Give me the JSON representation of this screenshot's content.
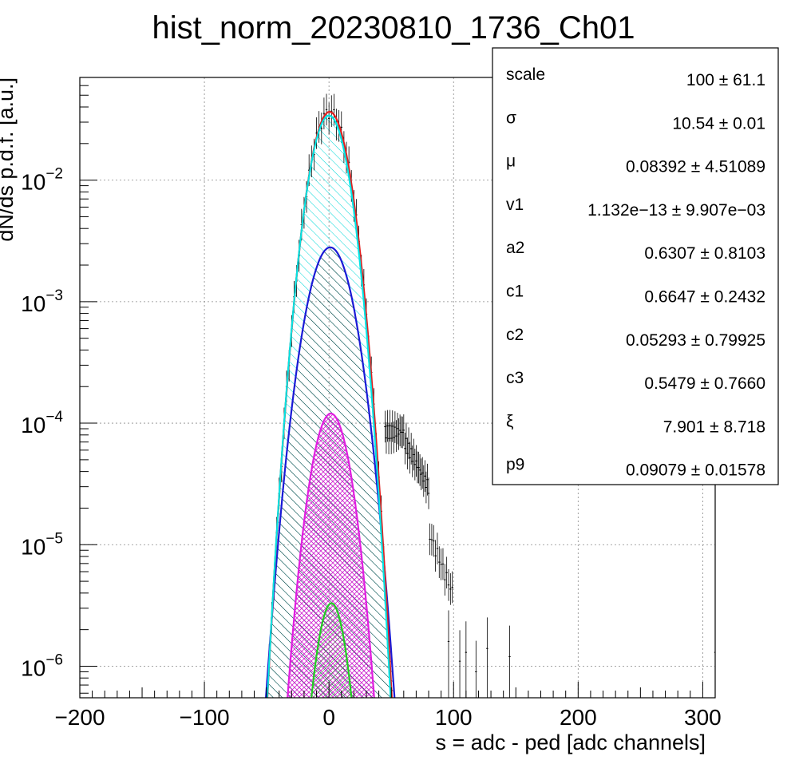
{
  "chart_data": {
    "type": "line",
    "title": "hist_norm_20230810_1736_Ch01",
    "xlabel": "s = adc - ped [adc channels]",
    "ylabel": "dN/ds p.d.f. [a.u.]",
    "xlim": [
      -200,
      310
    ],
    "ylim": [
      5.5e-07,
      0.07
    ],
    "y_scale": "log",
    "grid": true,
    "x_ticks": [
      {
        "value": -200,
        "label": "−200"
      },
      {
        "value": -100,
        "label": "−100"
      },
      {
        "value": 0,
        "label": "0"
      },
      {
        "value": 100,
        "label": "100"
      },
      {
        "value": 200,
        "label": "200"
      },
      {
        "value": 300,
        "label": "300"
      }
    ],
    "y_ticks": [
      {
        "value": 1e-06,
        "base": "10",
        "exp": "−6"
      },
      {
        "value": 1e-05,
        "base": "10",
        "exp": "−5"
      },
      {
        "value": 0.0001,
        "base": "10",
        "exp": "−4"
      },
      {
        "value": 0.001,
        "base": "10",
        "exp": "−3"
      },
      {
        "value": 0.01,
        "base": "10",
        "exp": "−2"
      }
    ],
    "components": [
      {
        "color": "#00e5e5",
        "peak": 0.034,
        "sigma": 10.54,
        "mu": 0.0,
        "fill": "hatch-cyan"
      },
      {
        "color": "#1a1ad6",
        "peak": 0.0028,
        "sigma": 12.5,
        "mu": 1.0,
        "fill": "hatch-black"
      },
      {
        "color": "#e01ee0",
        "peak": 0.00012,
        "sigma": 10.6,
        "mu": 1.5,
        "fill": "hatch-magenta"
      },
      {
        "color": "#22cc22",
        "peak": 3.3e-06,
        "sigma": 8.5,
        "mu": 2.0,
        "fill": "hatch-green"
      }
    ],
    "total_fit": {
      "color": "#e02020",
      "peak": 0.0365,
      "sigma": 10.6,
      "mu": 0.5
    },
    "data_points": {
      "color": "#000000",
      "segments": [
        {
          "x_from": -48,
          "x_to": 44,
          "step": 2,
          "model": "gauss",
          "peak": 0.0365,
          "sigma": 10.6,
          "mu": 0.5
        },
        {
          "x_from": 45,
          "x_to": 60,
          "step": 1,
          "model": "flat",
          "y": 8.5e-05
        },
        {
          "x_from": 61,
          "x_to": 80,
          "step": 1,
          "model": "exp",
          "y0": 7e-05,
          "x0": 61,
          "slope": -0.045
        },
        {
          "x_from": 81,
          "x_to": 100,
          "step": 1.5,
          "model": "exp",
          "y0": 1.2e-05,
          "x0": 81,
          "slope": -0.06
        }
      ],
      "sparse": [
        {
          "x": 96,
          "y": 1.6e-06
        },
        {
          "x": 105,
          "y": 1.1e-06
        },
        {
          "x": 110,
          "y": 1.3e-06
        },
        {
          "x": 118,
          "y": 9e-07
        },
        {
          "x": 127,
          "y": 1.4e-06
        },
        {
          "x": 145,
          "y": 1.2e-06
        },
        {
          "x": 310,
          "y": 1.3e-06
        }
      ]
    },
    "stats_box": {
      "entries": [
        {
          "name": "scale",
          "value": "100 ± 61.1"
        },
        {
          "name": "σ",
          "value": "10.54 ± 0.01"
        },
        {
          "name": "μ",
          "value": "0.08392 ± 4.51089"
        },
        {
          "name": "v1",
          "value": "1.132e−13 ± 9.907e−03"
        },
        {
          "name": "a2",
          "value": "0.6307 ± 0.8103"
        },
        {
          "name": "c1",
          "value": "0.6647 ± 0.2432"
        },
        {
          "name": "c2",
          "value": "0.05293 ± 0.79925"
        },
        {
          "name": "c3",
          "value": "0.5479 ± 0.7660"
        },
        {
          "name": "ξ",
          "value": "7.901 ± 8.718"
        },
        {
          "name": "p9",
          "value": "0.09079 ± 0.01578"
        }
      ]
    }
  }
}
